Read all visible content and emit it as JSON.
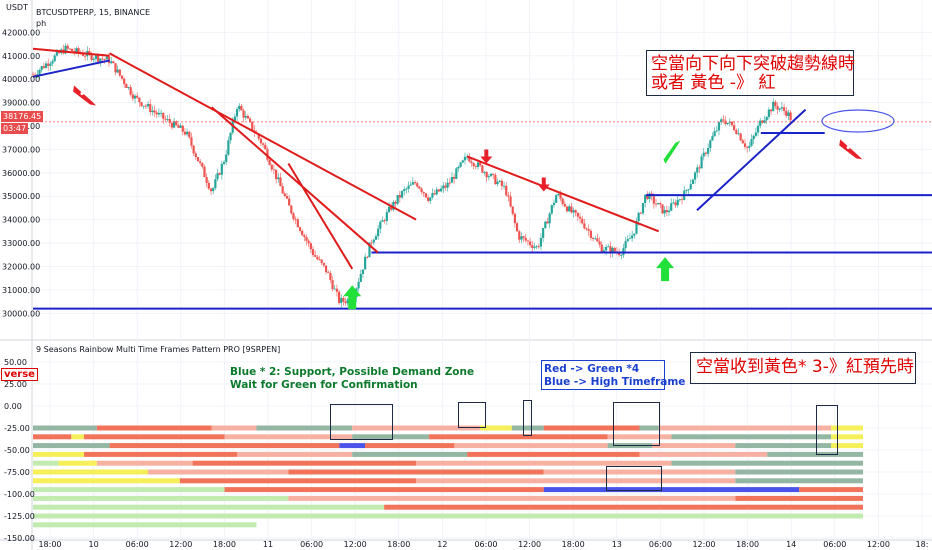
{
  "header": {
    "currency": "USDT",
    "symbol_line": "BTCUSDTPERP, 15, BINANCE",
    "sub_label": "ph",
    "indicator_title": "9 Seasons Rainbow Multi Time Frames Pattern PRO [9SRPEN]",
    "indicator_left_label": "verse"
  },
  "price_tags": {
    "last_price": "38176.45",
    "countdown": "03:47"
  },
  "notes": {
    "top_red_line1": "空當向下向下突破趨勢線時",
    "top_red_line2": "或者 黃色 -》 紅",
    "lower_red": "空當收到黃色* 3-》紅預先時",
    "green_line1": "Blue * 2: Support, Possible Demand Zone",
    "green_line2": "Wait for Green for Confirmation",
    "blue_line1": "Red -> Green *4",
    "blue_line2": "Blue -> High Timeframe"
  },
  "colors": {
    "up": "#26a69a",
    "down": "#ef5350",
    "trend": "#e01b1b",
    "support": "#1a22c8",
    "green_arrow": "#22e03a",
    "red_rocket": "#e8202a",
    "band_red": "#f0735a",
    "band_pink": "#f7b1a3",
    "band_green": "#93b7a3",
    "band_lightgreen": "#c2ebb0",
    "band_yellow": "#f5ef5a",
    "band_blue": "#4a54e8"
  },
  "chart_data": [
    {
      "type": "candlestick",
      "title": "BTCUSDTPERP, 15, BINANCE",
      "ylabel": "USDT",
      "ylim": [
        29800,
        42100
      ],
      "y_ticks": [
        30000,
        31000,
        32000,
        33000,
        34000,
        35000,
        36000,
        37000,
        38000,
        39000,
        40000,
        41000,
        42000
      ],
      "y_tick_labels": [
        "30000.00",
        "31000.00",
        "32000.00",
        "33000.00",
        "34000.00",
        "35000.00",
        "36000.00",
        "37000.00",
        "38000.00",
        "39000.00",
        "40000.00",
        "41000.00",
        "42000.00"
      ],
      "x_tick_labels": [
        "18:00",
        "10",
        "06:00",
        "12:00",
        "18:00",
        "11",
        "06:00",
        "12:00",
        "18:00",
        "12",
        "06:00",
        "12:00",
        "18:00",
        "13",
        "06:00",
        "12:00",
        "18:00",
        "14",
        "06:00",
        "12:00",
        "18:"
      ],
      "price_path": [
        [
          0,
          40200
        ],
        [
          5,
          41300
        ],
        [
          9,
          41000
        ],
        [
          12,
          40800
        ],
        [
          16,
          39200
        ],
        [
          20,
          38400
        ],
        [
          24,
          37700
        ],
        [
          28,
          35200
        ],
        [
          30,
          36600
        ],
        [
          32,
          38900
        ],
        [
          36,
          37200
        ],
        [
          40,
          34600
        ],
        [
          44,
          32500
        ],
        [
          46,
          31800
        ],
        [
          48,
          30500
        ],
        [
          50,
          30600
        ],
        [
          53,
          33100
        ],
        [
          56,
          34500
        ],
        [
          58,
          35200
        ],
        [
          60,
          35600
        ],
        [
          62,
          34900
        ],
        [
          65,
          35500
        ],
        [
          68,
          36700
        ],
        [
          71,
          36000
        ],
        [
          74,
          35300
        ],
        [
          76,
          33300
        ],
        [
          79,
          32800
        ],
        [
          82,
          35100
        ],
        [
          84,
          34400
        ],
        [
          86,
          33900
        ],
        [
          89,
          32800
        ],
        [
          92,
          32600
        ],
        [
          94,
          33400
        ],
        [
          96,
          35100
        ],
        [
          99,
          34300
        ],
        [
          102,
          35100
        ],
        [
          104,
          36100
        ],
        [
          106,
          37300
        ],
        [
          108,
          38300
        ],
        [
          110,
          37900
        ],
        [
          112,
          37000
        ],
        [
          114,
          38200
        ],
        [
          116,
          38900
        ],
        [
          118,
          38600
        ],
        [
          119,
          38200
        ]
      ],
      "last_price": 38176.45,
      "trend_lines": [
        {
          "name": "red-1",
          "from": [
            0,
            41300
          ],
          "to": [
            12,
            41000
          ]
        },
        {
          "name": "red-2",
          "from": [
            12,
            41100
          ],
          "to": [
            60,
            34000
          ]
        },
        {
          "name": "red-3",
          "from": [
            28,
            38800
          ],
          "to": [
            54,
            32600
          ]
        },
        {
          "name": "red-4",
          "from": [
            40,
            36400
          ],
          "to": [
            50,
            31900
          ]
        },
        {
          "name": "red-5",
          "from": [
            68,
            36700
          ],
          "to": [
            98,
            33500
          ]
        },
        {
          "name": "blue-1",
          "from": [
            0,
            40100
          ],
          "to": [
            12,
            40800
          ]
        },
        {
          "name": "blue-2",
          "from": [
            104,
            34400
          ],
          "to": [
            121,
            38700
          ]
        },
        {
          "name": "blue-3",
          "from": [
            114,
            37700
          ],
          "to": [
            124,
            37700
          ]
        }
      ],
      "support_lines": [
        30200,
        32600,
        35050
      ],
      "support_starts": [
        0,
        53,
        96
      ],
      "green_arrows": [
        [
          50,
          31200
        ],
        [
          99,
          32400
        ],
        [
          100,
          36900
        ]
      ],
      "red_arrows": [
        [
          71,
          36400
        ],
        [
          80,
          35200
        ]
      ],
      "red_rockets": [
        [
          8,
          39300
        ],
        [
          128,
          37000
        ]
      ]
    },
    {
      "type": "heatmap",
      "title": "9 Seasons Rainbow Multi Time Frames Pattern PRO [9SRPEN]",
      "ylim": [
        -150,
        50
      ],
      "y_ticks": [
        50,
        25,
        0,
        -25,
        -50,
        -75,
        -100,
        -125,
        -150
      ],
      "y_tick_labels": [
        "50.00",
        "25.00",
        "0.00",
        "-25.00",
        "-50.00",
        "-75.00",
        "-100.00",
        "-125.00",
        "-150.00"
      ],
      "row_values": [
        -25,
        -35,
        -45,
        -55,
        -65,
        -75,
        -85,
        -95,
        -105,
        -115,
        -125,
        -135
      ],
      "rows": [
        [
          [
            "g",
            0,
            10
          ],
          [
            "r",
            10,
            28
          ],
          [
            "p",
            28,
            35
          ],
          [
            "g",
            35,
            50
          ],
          [
            "p",
            50,
            70
          ],
          [
            "y",
            70,
            75
          ],
          [
            "g",
            75,
            80
          ],
          [
            "r",
            80,
            95
          ],
          [
            "g",
            95,
            98
          ],
          [
            "p",
            98,
            125
          ],
          [
            "y",
            125,
            130
          ]
        ],
        [
          [
            "r",
            0,
            6
          ],
          [
            "y",
            6,
            8
          ],
          [
            "r",
            8,
            30
          ],
          [
            "p",
            30,
            50
          ],
          [
            "g",
            50,
            62
          ],
          [
            "r",
            62,
            90
          ],
          [
            "p",
            90,
            100
          ],
          [
            "g",
            100,
            125
          ],
          [
            "y",
            125,
            130
          ]
        ],
        [
          [
            "g",
            0,
            12
          ],
          [
            "r",
            12,
            48
          ],
          [
            "b",
            48,
            52
          ],
          [
            "r",
            52,
            66
          ],
          [
            "p",
            66,
            90
          ],
          [
            "g",
            90,
            97
          ],
          [
            "p",
            97,
            110
          ],
          [
            "g",
            110,
            125
          ],
          [
            "y",
            125,
            130
          ]
        ],
        [
          [
            "y",
            0,
            8
          ],
          [
            "r",
            8,
            32
          ],
          [
            "p",
            32,
            50
          ],
          [
            "g",
            50,
            68
          ],
          [
            "r",
            68,
            95
          ],
          [
            "p",
            95,
            115
          ],
          [
            "g",
            115,
            130
          ]
        ],
        [
          [
            "lg",
            0,
            4
          ],
          [
            "y",
            4,
            10
          ],
          [
            "p",
            10,
            25
          ],
          [
            "r",
            25,
            60
          ],
          [
            "p",
            60,
            100
          ],
          [
            "g",
            100,
            130
          ]
        ],
        [
          [
            "y",
            0,
            18
          ],
          [
            "p",
            18,
            40
          ],
          [
            "r",
            40,
            80
          ],
          [
            "p",
            80,
            110
          ],
          [
            "g",
            110,
            130
          ]
        ],
        [
          [
            "y",
            0,
            23
          ],
          [
            "r",
            23,
            60
          ],
          [
            "p",
            60,
            110
          ],
          [
            "g",
            110,
            130
          ]
        ],
        [
          [
            "lg",
            0,
            30
          ],
          [
            "r",
            30,
            80
          ],
          [
            "b",
            80,
            120
          ],
          [
            "r",
            120,
            130
          ]
        ],
        [
          [
            "lg",
            0,
            40
          ],
          [
            "p",
            40,
            110
          ],
          [
            "r",
            110,
            130
          ]
        ],
        [
          [
            "lg",
            0,
            55
          ],
          [
            "r",
            55,
            130
          ]
        ],
        [
          [
            "lg",
            0,
            130
          ]
        ],
        [
          [
            "lg",
            0,
            35
          ]
        ]
      ]
    }
  ]
}
